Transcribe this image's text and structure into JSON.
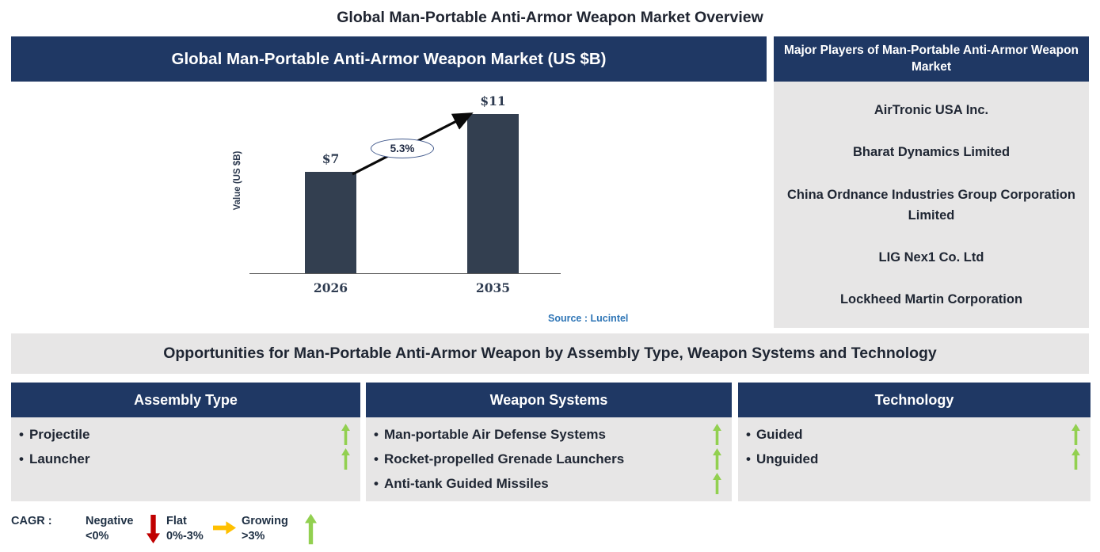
{
  "page_title": "Global Man-Portable Anti-Armor Weapon Market Overview",
  "chart_panel": {
    "header": "Global Man-Portable Anti-Armor Weapon Market (US $B)"
  },
  "chart_data": {
    "type": "bar",
    "title": "Global Man-Portable Anti-Armor Weapon Market (US $B)",
    "ylabel": "Value (US $B)",
    "xlabel": "",
    "categories": [
      "2026",
      "2035"
    ],
    "values": [
      7,
      11
    ],
    "bar_labels": [
      "$7",
      "$11"
    ],
    "growth_annotation": "5.3%",
    "source": "Source : Lucintel",
    "bar_color": "#333F50",
    "grid": false,
    "legend_position": "none"
  },
  "major_players": {
    "header": "Major Players of Man-Portable Anti-Armor Weapon Market",
    "players": [
      "AirTronic USA Inc.",
      "Bharat Dynamics Limited",
      "China Ordnance Industries Group Corporation Limited",
      "LIG Nex1 Co. Ltd",
      "Lockheed Martin Corporation"
    ]
  },
  "opportunities": {
    "title": "Opportunities for Man-Portable Anti-Armor Weapon by Assembly Type, Weapon Systems and Technology",
    "bullet_glyph": "•",
    "columns": [
      {
        "header": "Assembly Type",
        "items": [
          {
            "label": "Projectile",
            "trend": "growing",
            "trend_icon": "up-arrow-icon"
          },
          {
            "label": "Launcher",
            "trend": "growing",
            "trend_icon": "up-arrow-icon"
          }
        ]
      },
      {
        "header": "Weapon Systems",
        "items": [
          {
            "label": "Man-portable Air Defense Systems",
            "trend": "growing",
            "trend_icon": "up-arrow-icon"
          },
          {
            "label": "Rocket-propelled Grenade Launchers",
            "trend": "growing",
            "trend_icon": "up-arrow-icon"
          },
          {
            "label": "Anti-tank Guided Missiles",
            "trend": "growing",
            "trend_icon": "up-arrow-icon"
          }
        ]
      },
      {
        "header": "Technology",
        "items": [
          {
            "label": "Guided",
            "trend": "growing",
            "trend_icon": "up-arrow-icon"
          },
          {
            "label": "Unguided",
            "trend": "growing",
            "trend_icon": "up-arrow-icon"
          }
        ]
      }
    ]
  },
  "cagr_legend": {
    "prefix": "CAGR :",
    "entries": [
      {
        "label": "Negative",
        "range": "<0%",
        "icon": "down-arrow-icon",
        "color": "#C00000"
      },
      {
        "label": "Flat",
        "range": "0%-3%",
        "icon": "right-arrow-icon",
        "color": "#FFC000"
      },
      {
        "label": "Growing",
        "range": ">3%",
        "icon": "up-arrow-icon",
        "color": "#92D050"
      }
    ]
  },
  "colors": {
    "navy_header": "#1F3864",
    "panel_gray": "#E7E6E6",
    "bar": "#333F50",
    "source_blue": "#2E75B6",
    "growing_green": "#92D050",
    "flat_yellow": "#FFC000",
    "negative_red": "#C00000",
    "arrow_black": "#0A0A0A"
  }
}
